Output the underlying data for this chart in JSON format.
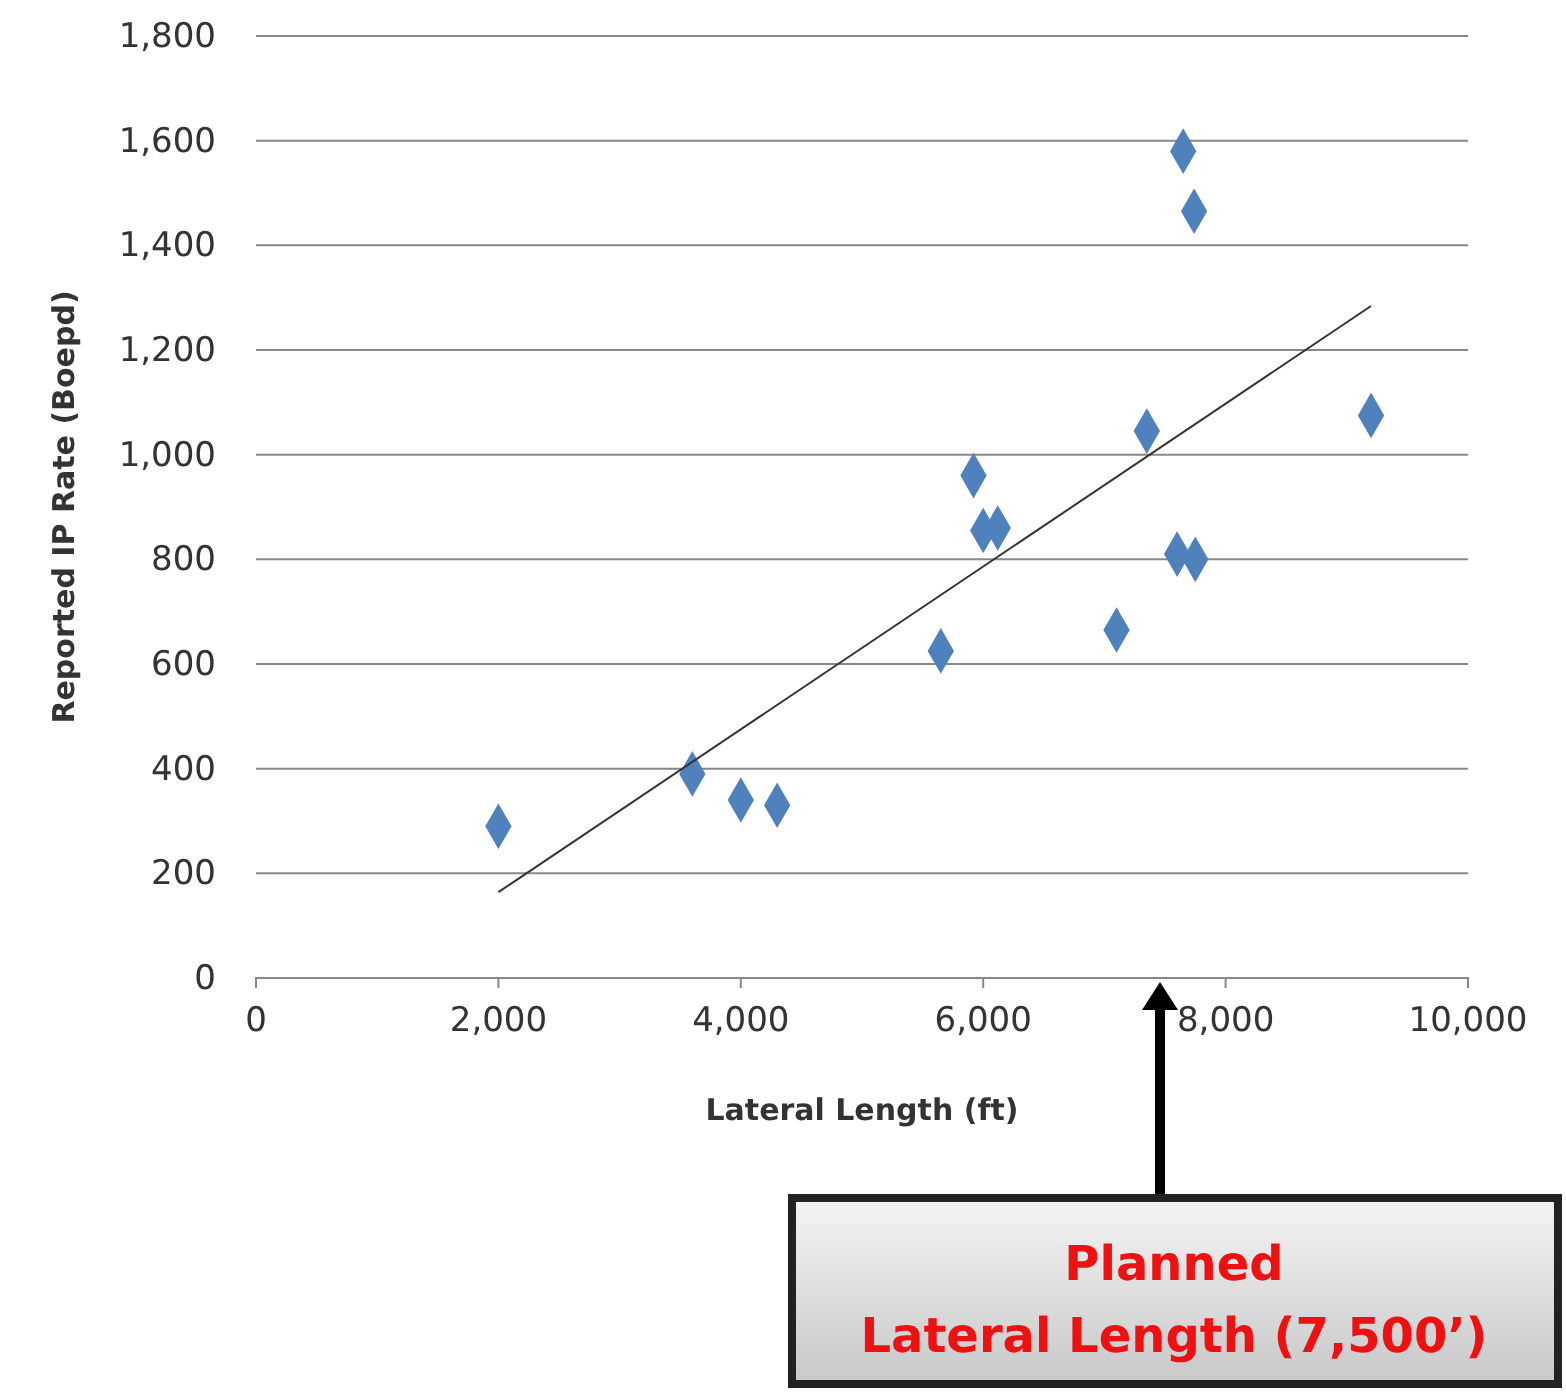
{
  "chart_data": {
    "type": "scatter",
    "xlabel": "Lateral Length (ft)",
    "ylabel": "Reported IP Rate (Boepd)",
    "series": [
      {
        "color": "#4f81bd",
        "marker": "diamond",
        "x": [
          2000,
          3600,
          4000,
          4300,
          5650,
          5920,
          6000,
          6120,
          7100,
          7350,
          7650,
          7740,
          7600,
          7750,
          9200
        ],
        "values": [
          290,
          390,
          340,
          330,
          625,
          960,
          855,
          860,
          665,
          1045,
          1580,
          1465,
          810,
          800,
          1075
        ]
      },
      {
        "type": "line",
        "color": "#333333",
        "x": [
          2000,
          9200
        ],
        "values": [
          164,
          1284
        ]
      }
    ],
    "grid": "y",
    "xlim": [
      0,
      10000
    ],
    "xticks": [
      0,
      {
        "value": 2000,
        "label": "2,000"
      },
      {
        "value": 4000,
        "label": "4,000"
      },
      {
        "value": 6000,
        "label": "6,000"
      },
      {
        "value": 8000,
        "label": "8,000"
      },
      {
        "value": 10000,
        "label": "10,000"
      }
    ],
    "ylim": [
      0,
      1800
    ],
    "yticks": [
      0,
      200,
      400,
      600,
      800,
      {
        "value": 1000,
        "label": "1,000"
      },
      {
        "value": 1200,
        "label": "1,200"
      },
      {
        "value": 1400,
        "label": "1,400"
      },
      {
        "value": 1600,
        "label": "1,600"
      },
      {
        "value": 1800,
        "label": "1,800"
      }
    ],
    "annotations": [
      "Planned\nLateral Length (7,500’)"
    ]
  }
}
